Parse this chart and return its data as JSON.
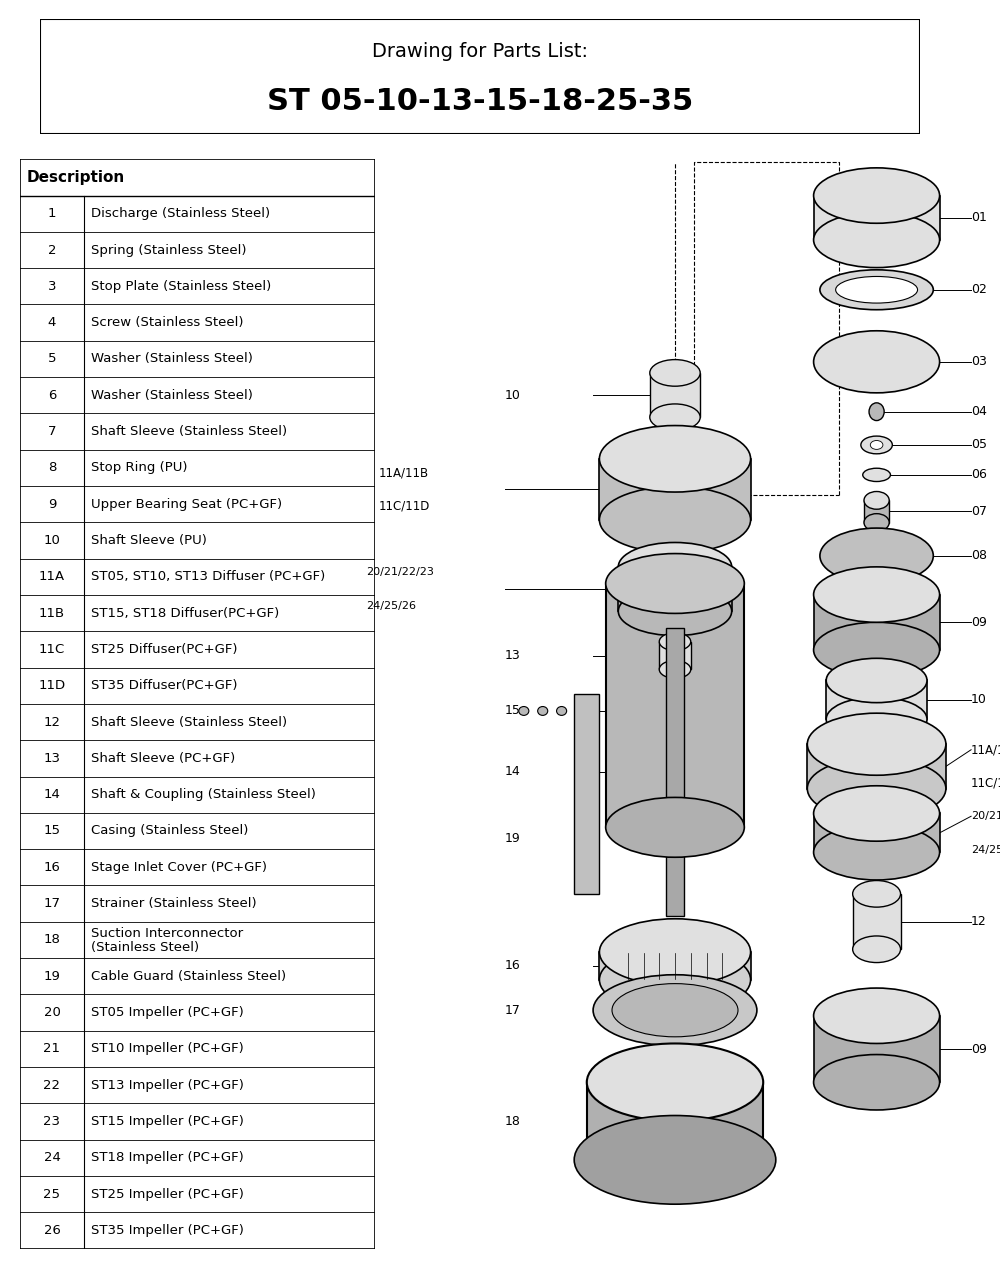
{
  "title_line1": "Drawing for Parts List:",
  "title_line2": "ST 05-10-13-15-18-25-35",
  "bg_color": "#ffffff",
  "table_header": "Description",
  "parts": [
    [
      "1",
      "Discharge (Stainless Steel)"
    ],
    [
      "2",
      "Spring (Stainless Steel)"
    ],
    [
      "3",
      "Stop Plate (Stainless Steel)"
    ],
    [
      "4",
      "Screw (Stainless Steel)"
    ],
    [
      "5",
      "Washer (Stainless Steel)"
    ],
    [
      "6",
      "Washer (Stainless Steel)"
    ],
    [
      "7",
      "Shaft Sleeve (Stainless Steel)"
    ],
    [
      "8",
      "Stop Ring (PU)"
    ],
    [
      "9",
      "Upper Bearing Seat (PC+GF)"
    ],
    [
      "10",
      "Shaft Sleeve (PU)"
    ],
    [
      "11A",
      "ST05, ST10, ST13 Diffuser (PC+GF)"
    ],
    [
      "11B",
      "ST15, ST18 Diffuser(PC+GF)"
    ],
    [
      "11C",
      "ST25 Diffuser(PC+GF)"
    ],
    [
      "11D",
      "ST35 Diffuser(PC+GF)"
    ],
    [
      "12",
      "Shaft Sleeve (Stainless Steel)"
    ],
    [
      "13",
      "Shaft Sleeve (PC+GF)"
    ],
    [
      "14",
      "Shaft & Coupling (Stainless Steel)"
    ],
    [
      "15",
      "Casing (Stainless Steel)"
    ],
    [
      "16",
      "Stage Inlet Cover (PC+GF)"
    ],
    [
      "17",
      "Strainer (Stainless Steel)"
    ],
    [
      "18",
      "Suction Interconnector\n  (Stainless Steel)"
    ],
    [
      "19",
      "Cable Guard (Stainless Steel)"
    ],
    [
      "20",
      "ST05 Impeller (PC+GF)"
    ],
    [
      "21",
      "ST10 Impeller (PC+GF)"
    ],
    [
      "22",
      "ST13 Impeller (PC+GF)"
    ],
    [
      "23",
      "ST15 Impeller (PC+GF)"
    ],
    [
      "24",
      "ST18 Impeller (PC+GF)"
    ],
    [
      "25",
      "ST25 Impeller (PC+GF)"
    ],
    [
      "26",
      "ST35 Impeller (PC+GF)"
    ]
  ]
}
